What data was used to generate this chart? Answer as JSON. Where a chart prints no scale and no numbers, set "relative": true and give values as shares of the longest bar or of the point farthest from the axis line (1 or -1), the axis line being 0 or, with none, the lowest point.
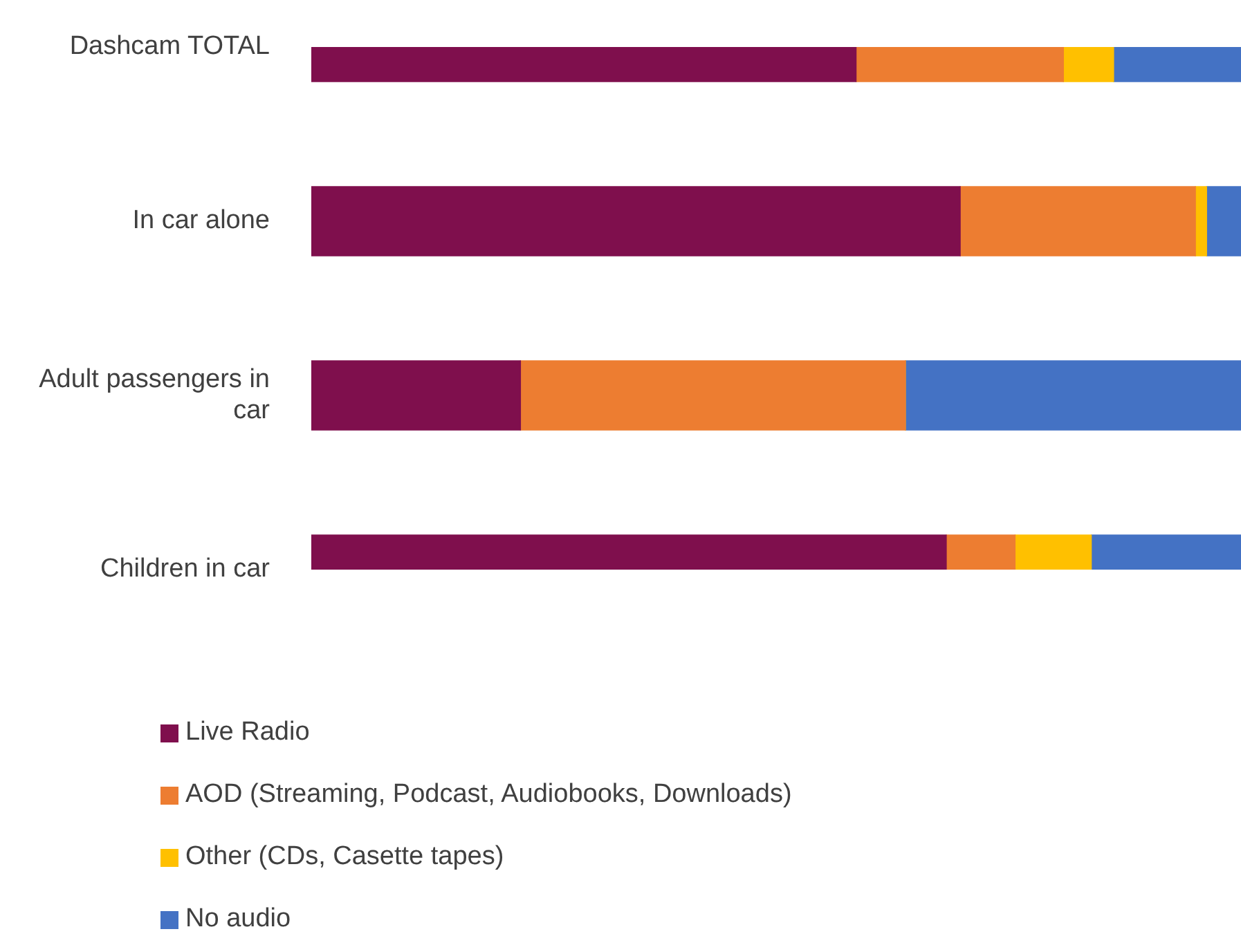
{
  "chart_data": {
    "type": "bar",
    "orientation": "horizontal",
    "stacked": true,
    "relative": true,
    "legend": "bottom",
    "grid": false,
    "categories": [
      "Dashcam TOTAL",
      "In car alone",
      "Adult passengers in car",
      "Children in car"
    ],
    "series": [
      {
        "name": "Live Radio",
        "color": "#7f0f4d",
        "values": [
          0.586,
          0.698,
          0.225,
          0.683
        ]
      },
      {
        "name": "AOD (Streaming, Podcast, Audiobooks, Downloads)",
        "color": "#ed7d31",
        "values": [
          0.223,
          0.253,
          0.414,
          0.074
        ]
      },
      {
        "name": "Other (CDs, Casette tapes)",
        "color": "#ffc000",
        "values": [
          0.054,
          0.012,
          0,
          0.082
        ]
      },
      {
        "name": "No audio",
        "color": "#4472c4",
        "values": [
          0.137,
          0.037,
          0.361,
          0.161
        ]
      }
    ]
  }
}
